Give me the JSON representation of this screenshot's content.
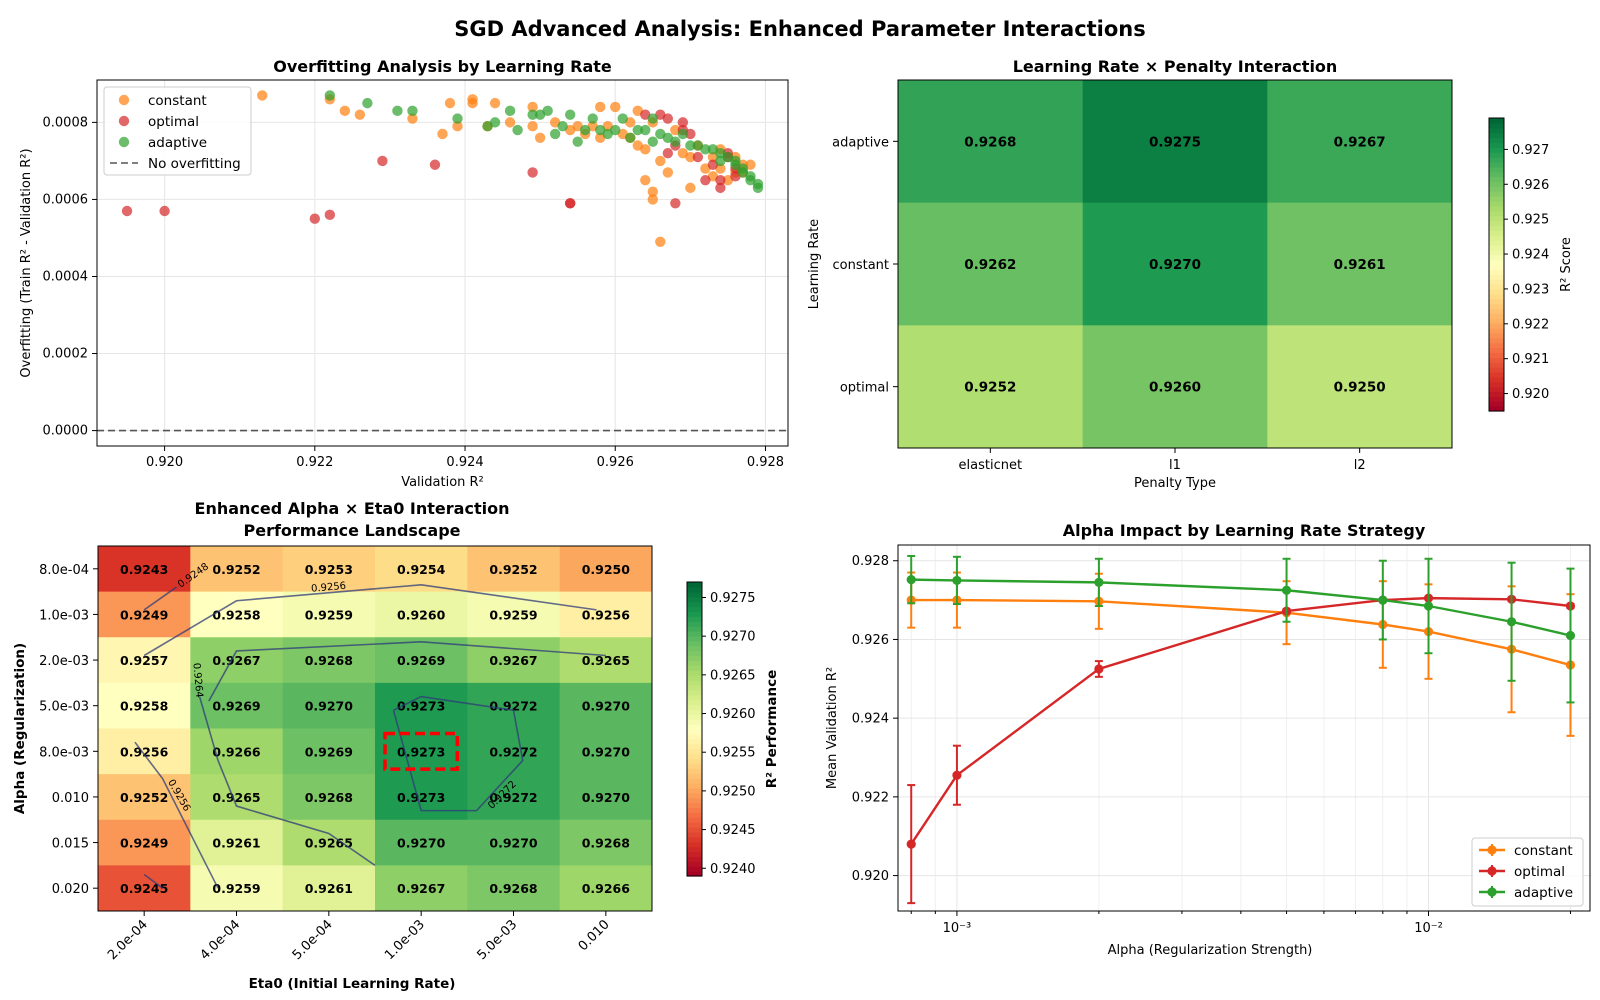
{
  "suptitle": "SGD Advanced Analysis: Enhanced Parameter Interactions",
  "colors": {
    "constant": "#ff7f0e",
    "optimal": "#d62728",
    "adaptive": "#2ca02c",
    "grid": "#e6e6e6",
    "highlight": "#ff0000"
  },
  "chart_data": [
    {
      "id": "overfitting",
      "type": "scatter",
      "title": "Overfitting Analysis by Learning Rate",
      "xlabel": "Validation R²",
      "ylabel": "Overfitting (Train R² - Validation R²)",
      "xlim": [
        0.9191,
        0.9283
      ],
      "ylim": [
        -4e-05,
        0.00091
      ],
      "xticks": [
        0.92,
        0.922,
        0.924,
        0.926,
        0.928
      ],
      "xtick_labels": [
        "0.920",
        "0.922",
        "0.924",
        "0.926",
        "0.928"
      ],
      "yticks": [
        0.0,
        0.0002,
        0.0004,
        0.0006,
        0.0008
      ],
      "ytick_labels": [
        "0.0000",
        "0.0002",
        "0.0004",
        "0.0006",
        "0.0008"
      ],
      "grid": true,
      "legend": "upper-left",
      "reference_line": {
        "y": 0.0,
        "label": "No overfitting",
        "style": "dashed"
      },
      "series": [
        {
          "name": "constant",
          "points": [
            [
              0.9213,
              0.00087
            ],
            [
              0.9222,
              0.00086
            ],
            [
              0.9224,
              0.00083
            ],
            [
              0.9226,
              0.00082
            ],
            [
              0.9233,
              0.00081
            ],
            [
              0.9237,
              0.00077
            ],
            [
              0.9238,
              0.00085
            ],
            [
              0.9239,
              0.00079
            ],
            [
              0.9241,
              0.00085
            ],
            [
              0.9241,
              0.00086
            ],
            [
              0.9243,
              0.00079
            ],
            [
              0.9244,
              0.00085
            ],
            [
              0.9246,
              0.0008
            ],
            [
              0.9249,
              0.00079
            ],
            [
              0.9249,
              0.00084
            ],
            [
              0.925,
              0.00076
            ],
            [
              0.9252,
              0.0008
            ],
            [
              0.9254,
              0.00078
            ],
            [
              0.9255,
              0.00079
            ],
            [
              0.9256,
              0.00077
            ],
            [
              0.9257,
              0.00079
            ],
            [
              0.9258,
              0.00084
            ],
            [
              0.9258,
              0.00076
            ],
            [
              0.9259,
              0.00079
            ],
            [
              0.926,
              0.00084
            ],
            [
              0.9261,
              0.00077
            ],
            [
              0.9262,
              0.0008
            ],
            [
              0.9262,
              0.00076
            ],
            [
              0.9263,
              0.00083
            ],
            [
              0.9263,
              0.00074
            ],
            [
              0.9264,
              0.00065
            ],
            [
              0.9264,
              0.00073
            ],
            [
              0.9265,
              0.00062
            ],
            [
              0.9265,
              0.0006
            ],
            [
              0.9265,
              0.0008
            ],
            [
              0.9266,
              0.0007
            ],
            [
              0.9266,
              0.00049
            ],
            [
              0.9267,
              0.00067
            ],
            [
              0.9268,
              0.00078
            ],
            [
              0.9269,
              0.00072
            ],
            [
              0.927,
              0.00071
            ],
            [
              0.927,
              0.00063
            ],
            [
              0.9271,
              0.00074
            ],
            [
              0.9272,
              0.00068
            ],
            [
              0.9273,
              0.00071
            ],
            [
              0.9273,
              0.00066
            ],
            [
              0.9274,
              0.00073
            ],
            [
              0.9274,
              0.00068
            ],
            [
              0.9275,
              0.00065
            ],
            [
              0.9276,
              0.00071
            ],
            [
              0.9276,
              0.00067
            ],
            [
              0.9277,
              0.00069
            ],
            [
              0.9277,
              0.00067
            ],
            [
              0.9278,
              0.00069
            ]
          ]
        },
        {
          "name": "optimal",
          "points": [
            [
              0.9195,
              0.00057
            ],
            [
              0.92,
              0.00057
            ],
            [
              0.922,
              0.00055
            ],
            [
              0.9222,
              0.00056
            ],
            [
              0.9229,
              0.0007
            ],
            [
              0.9236,
              0.00069
            ],
            [
              0.9249,
              0.00067
            ],
            [
              0.9254,
              0.00059
            ],
            [
              0.9254,
              0.00059
            ],
            [
              0.9264,
              0.00082
            ],
            [
              0.9266,
              0.00082
            ],
            [
              0.9267,
              0.00081
            ],
            [
              0.9267,
              0.00072
            ],
            [
              0.9268,
              0.00074
            ],
            [
              0.9268,
              0.00059
            ],
            [
              0.9269,
              0.0008
            ],
            [
              0.9269,
              0.00078
            ],
            [
              0.927,
              0.00077
            ],
            [
              0.9271,
              0.00071
            ],
            [
              0.9272,
              0.00065
            ],
            [
              0.9273,
              0.00069
            ],
            [
              0.9274,
              0.00065
            ],
            [
              0.9274,
              0.00063
            ],
            [
              0.9275,
              0.00072
            ],
            [
              0.9275,
              0.00071
            ],
            [
              0.9276,
              0.00068
            ],
            [
              0.9276,
              0.00066
            ]
          ]
        },
        {
          "name": "adaptive",
          "points": [
            [
              0.9222,
              0.00087
            ],
            [
              0.9227,
              0.00085
            ],
            [
              0.9231,
              0.00083
            ],
            [
              0.9233,
              0.00083
            ],
            [
              0.9239,
              0.00081
            ],
            [
              0.9243,
              0.00079
            ],
            [
              0.9244,
              0.0008
            ],
            [
              0.9246,
              0.00083
            ],
            [
              0.9247,
              0.00078
            ],
            [
              0.9249,
              0.00082
            ],
            [
              0.925,
              0.00082
            ],
            [
              0.9251,
              0.00083
            ],
            [
              0.9252,
              0.00077
            ],
            [
              0.9253,
              0.00079
            ],
            [
              0.9254,
              0.00082
            ],
            [
              0.9255,
              0.00075
            ],
            [
              0.9256,
              0.00078
            ],
            [
              0.9257,
              0.00081
            ],
            [
              0.9258,
              0.00078
            ],
            [
              0.9259,
              0.00077
            ],
            [
              0.926,
              0.00078
            ],
            [
              0.9261,
              0.00081
            ],
            [
              0.9262,
              0.00076
            ],
            [
              0.9263,
              0.00078
            ],
            [
              0.9264,
              0.00078
            ],
            [
              0.9265,
              0.00075
            ],
            [
              0.9265,
              0.00081
            ],
            [
              0.9266,
              0.00077
            ],
            [
              0.9267,
              0.00076
            ],
            [
              0.9268,
              0.00075
            ],
            [
              0.9269,
              0.00077
            ],
            [
              0.927,
              0.00074
            ],
            [
              0.9271,
              0.00074
            ],
            [
              0.9272,
              0.00073
            ],
            [
              0.9273,
              0.00073
            ],
            [
              0.9274,
              0.00072
            ],
            [
              0.9274,
              0.0007
            ],
            [
              0.9275,
              0.00071
            ],
            [
              0.9276,
              0.0007
            ],
            [
              0.9276,
              0.00069
            ],
            [
              0.9277,
              0.00068
            ],
            [
              0.9277,
              0.00067
            ],
            [
              0.9278,
              0.00066
            ],
            [
              0.9278,
              0.00065
            ],
            [
              0.9279,
              0.00064
            ],
            [
              0.9279,
              0.00063
            ]
          ]
        }
      ]
    },
    {
      "id": "lr-penalty",
      "type": "heatmap",
      "title": "Learning Rate × Penalty Interaction",
      "xlabel": "Penalty Type",
      "ylabel": "Learning Rate",
      "columns": [
        "elasticnet",
        "l1",
        "l2"
      ],
      "rows": [
        "adaptive",
        "constant",
        "optimal"
      ],
      "values": [
        [
          0.9268,
          0.9275,
          0.9267
        ],
        [
          0.9262,
          0.927,
          0.9261
        ],
        [
          0.9252,
          0.926,
          0.925
        ]
      ],
      "value_labels": [
        [
          "0.9268",
          "0.9275",
          "0.9267"
        ],
        [
          "0.9262",
          "0.9270",
          "0.9261"
        ],
        [
          "0.9252",
          "0.9260",
          "0.9250"
        ]
      ],
      "colormap": "RdYlGn",
      "vmin": 0.9195,
      "vmax": 0.9279,
      "colorbar_label": "R² Score",
      "colorbar_ticks": [
        0.92,
        0.921,
        0.922,
        0.923,
        0.924,
        0.925,
        0.926,
        0.927
      ],
      "colorbar_tick_labels": [
        "0.920",
        "0.921",
        "0.922",
        "0.923",
        "0.924",
        "0.925",
        "0.926",
        "0.927"
      ]
    },
    {
      "id": "alpha-eta0",
      "type": "heatmap",
      "title": "Enhanced Alpha × Eta0 Interaction",
      "subtitle": "Performance Landscape",
      "xlabel": "Eta0 (Initial Learning Rate)",
      "ylabel": "Alpha (Regularization)",
      "columns": [
        "2.0e-04",
        "4.0e-04",
        "5.0e-04",
        "1.0e-03",
        "5.0e-03",
        "0.010"
      ],
      "rows": [
        "8.0e-04",
        "1.0e-03",
        "2.0e-03",
        "5.0e-03",
        "8.0e-03",
        "0.010",
        "0.015",
        "0.020"
      ],
      "values": [
        [
          0.9243,
          0.9252,
          0.9253,
          0.9254,
          0.9252,
          0.925
        ],
        [
          0.9249,
          0.9258,
          0.9259,
          0.926,
          0.9259,
          0.9256
        ],
        [
          0.9257,
          0.9267,
          0.9268,
          0.9269,
          0.9267,
          0.9265
        ],
        [
          0.9258,
          0.9269,
          0.927,
          0.9273,
          0.9272,
          0.927
        ],
        [
          0.9256,
          0.9266,
          0.9269,
          0.9273,
          0.9272,
          0.927
        ],
        [
          0.9252,
          0.9265,
          0.9268,
          0.9273,
          0.9272,
          0.927
        ],
        [
          0.9249,
          0.9261,
          0.9265,
          0.927,
          0.927,
          0.9268
        ],
        [
          0.9245,
          0.9259,
          0.9261,
          0.9267,
          0.9268,
          0.9266
        ]
      ],
      "value_labels": [
        [
          "0.9243",
          "0.9252",
          "0.9253",
          "0.9254",
          "0.9252",
          "0.9250"
        ],
        [
          "0.9249",
          "0.9258",
          "0.9259",
          "0.9260",
          "0.9259",
          "0.9256"
        ],
        [
          "0.9257",
          "0.9267",
          "0.9268",
          "0.9269",
          "0.9267",
          "0.9265"
        ],
        [
          "0.9258",
          "0.9269",
          "0.9270",
          "0.9273",
          "0.9272",
          "0.9270"
        ],
        [
          "0.9256",
          "0.9266",
          "0.9269",
          "0.9273",
          "0.9272",
          "0.9270"
        ],
        [
          "0.9252",
          "0.9265",
          "0.9268",
          "0.9273",
          "0.9272",
          "0.9270"
        ],
        [
          "0.9249",
          "0.9261",
          "0.9265",
          "0.9270",
          "0.9270",
          "0.9268"
        ],
        [
          "0.9245",
          "0.9259",
          "0.9261",
          "0.9267",
          "0.9268",
          "0.9266"
        ]
      ],
      "colormap": "RdYlGn",
      "vmin": 0.9239,
      "vmax": 0.9277,
      "colorbar_label": "R² Performance",
      "colorbar_ticks": [
        0.924,
        0.9245,
        0.925,
        0.9255,
        0.926,
        0.9265,
        0.927,
        0.9275
      ],
      "colorbar_tick_labels": [
        "0.9240",
        "0.9245",
        "0.9250",
        "0.9255",
        "0.9260",
        "0.9265",
        "0.9270",
        "0.9275"
      ],
      "highlight_cell": {
        "row": 4,
        "col": 3
      },
      "contour_labels": [
        "0.9248",
        "0.9256",
        "0.9264",
        "0.9256",
        "0.9272"
      ]
    },
    {
      "id": "alpha-impact",
      "type": "line",
      "title": "Alpha Impact by Learning Rate Strategy",
      "xlabel": "Alpha (Regularization Strength)",
      "ylabel": "Mean Validation R²",
      "xscale": "log",
      "xlim": [
        0.00075,
        0.022
      ],
      "ylim": [
        0.9191,
        0.9284
      ],
      "xticks": [
        0.001,
        0.01
      ],
      "xtick_labels": [
        "10⁻³",
        "10⁻²"
      ],
      "yticks": [
        0.92,
        0.922,
        0.924,
        0.926,
        0.928
      ],
      "ytick_labels": [
        "0.920",
        "0.922",
        "0.924",
        "0.926",
        "0.928"
      ],
      "grid": true,
      "legend": "lower-right",
      "x": [
        0.0008,
        0.001,
        0.002,
        0.005,
        0.008,
        0.01,
        0.015,
        0.02
      ],
      "series": [
        {
          "name": "constant",
          "values": [
            0.927,
            0.927,
            0.92697,
            0.92668,
            0.92638,
            0.9262,
            0.92575,
            0.92535
          ],
          "errors": [
            0.0007,
            0.0007,
            0.0007,
            0.0008,
            0.0011,
            0.0012,
            0.0016,
            0.0018
          ]
        },
        {
          "name": "optimal",
          "values": [
            0.9208,
            0.92255,
            0.92525,
            0.92672,
            0.927,
            0.92705,
            0.92702,
            0.92685
          ],
          "errors": [
            0.0015,
            0.00075,
            0.0002,
            5e-05,
            3e-05,
            3e-05,
            4e-05,
            5e-05
          ]
        },
        {
          "name": "adaptive",
          "values": [
            0.92752,
            0.9275,
            0.92745,
            0.92725,
            0.927,
            0.92685,
            0.92645,
            0.9261
          ],
          "errors": [
            0.0006,
            0.0006,
            0.0006,
            0.0008,
            0.001,
            0.0012,
            0.0015,
            0.0017
          ]
        }
      ]
    }
  ]
}
